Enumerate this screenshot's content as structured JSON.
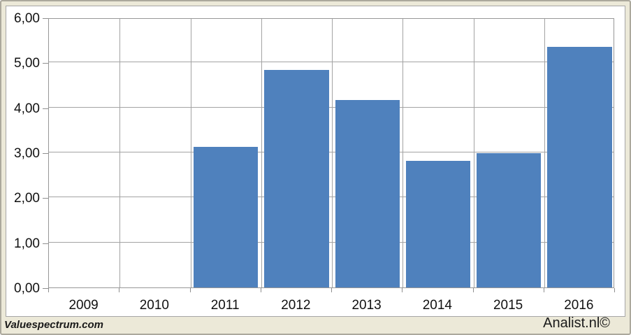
{
  "page": {
    "background_color": "#ece9d8",
    "chart_background_color": "#ffffff"
  },
  "footer": {
    "left_brand": "Valuespectrum.com",
    "right_brand": "Analist.nl©"
  },
  "chart_data": {
    "type": "bar",
    "title": "",
    "xlabel": "",
    "ylabel": "",
    "categories": [
      "2009",
      "2010",
      "2011",
      "2012",
      "2013",
      "2014",
      "2015",
      "2016"
    ],
    "values": [
      0,
      0,
      3.12,
      4.83,
      4.16,
      2.81,
      2.98,
      5.34
    ],
    "ylim": [
      0,
      6
    ],
    "ytick_step": 1,
    "ytick_labels": [
      "0,00",
      "1,00",
      "2,00",
      "3,00",
      "4,00",
      "5,00",
      "6,00"
    ],
    "grid": true,
    "legend": false,
    "bar_color": "#4f81bd",
    "gridline_color": "#a3a3a3"
  }
}
